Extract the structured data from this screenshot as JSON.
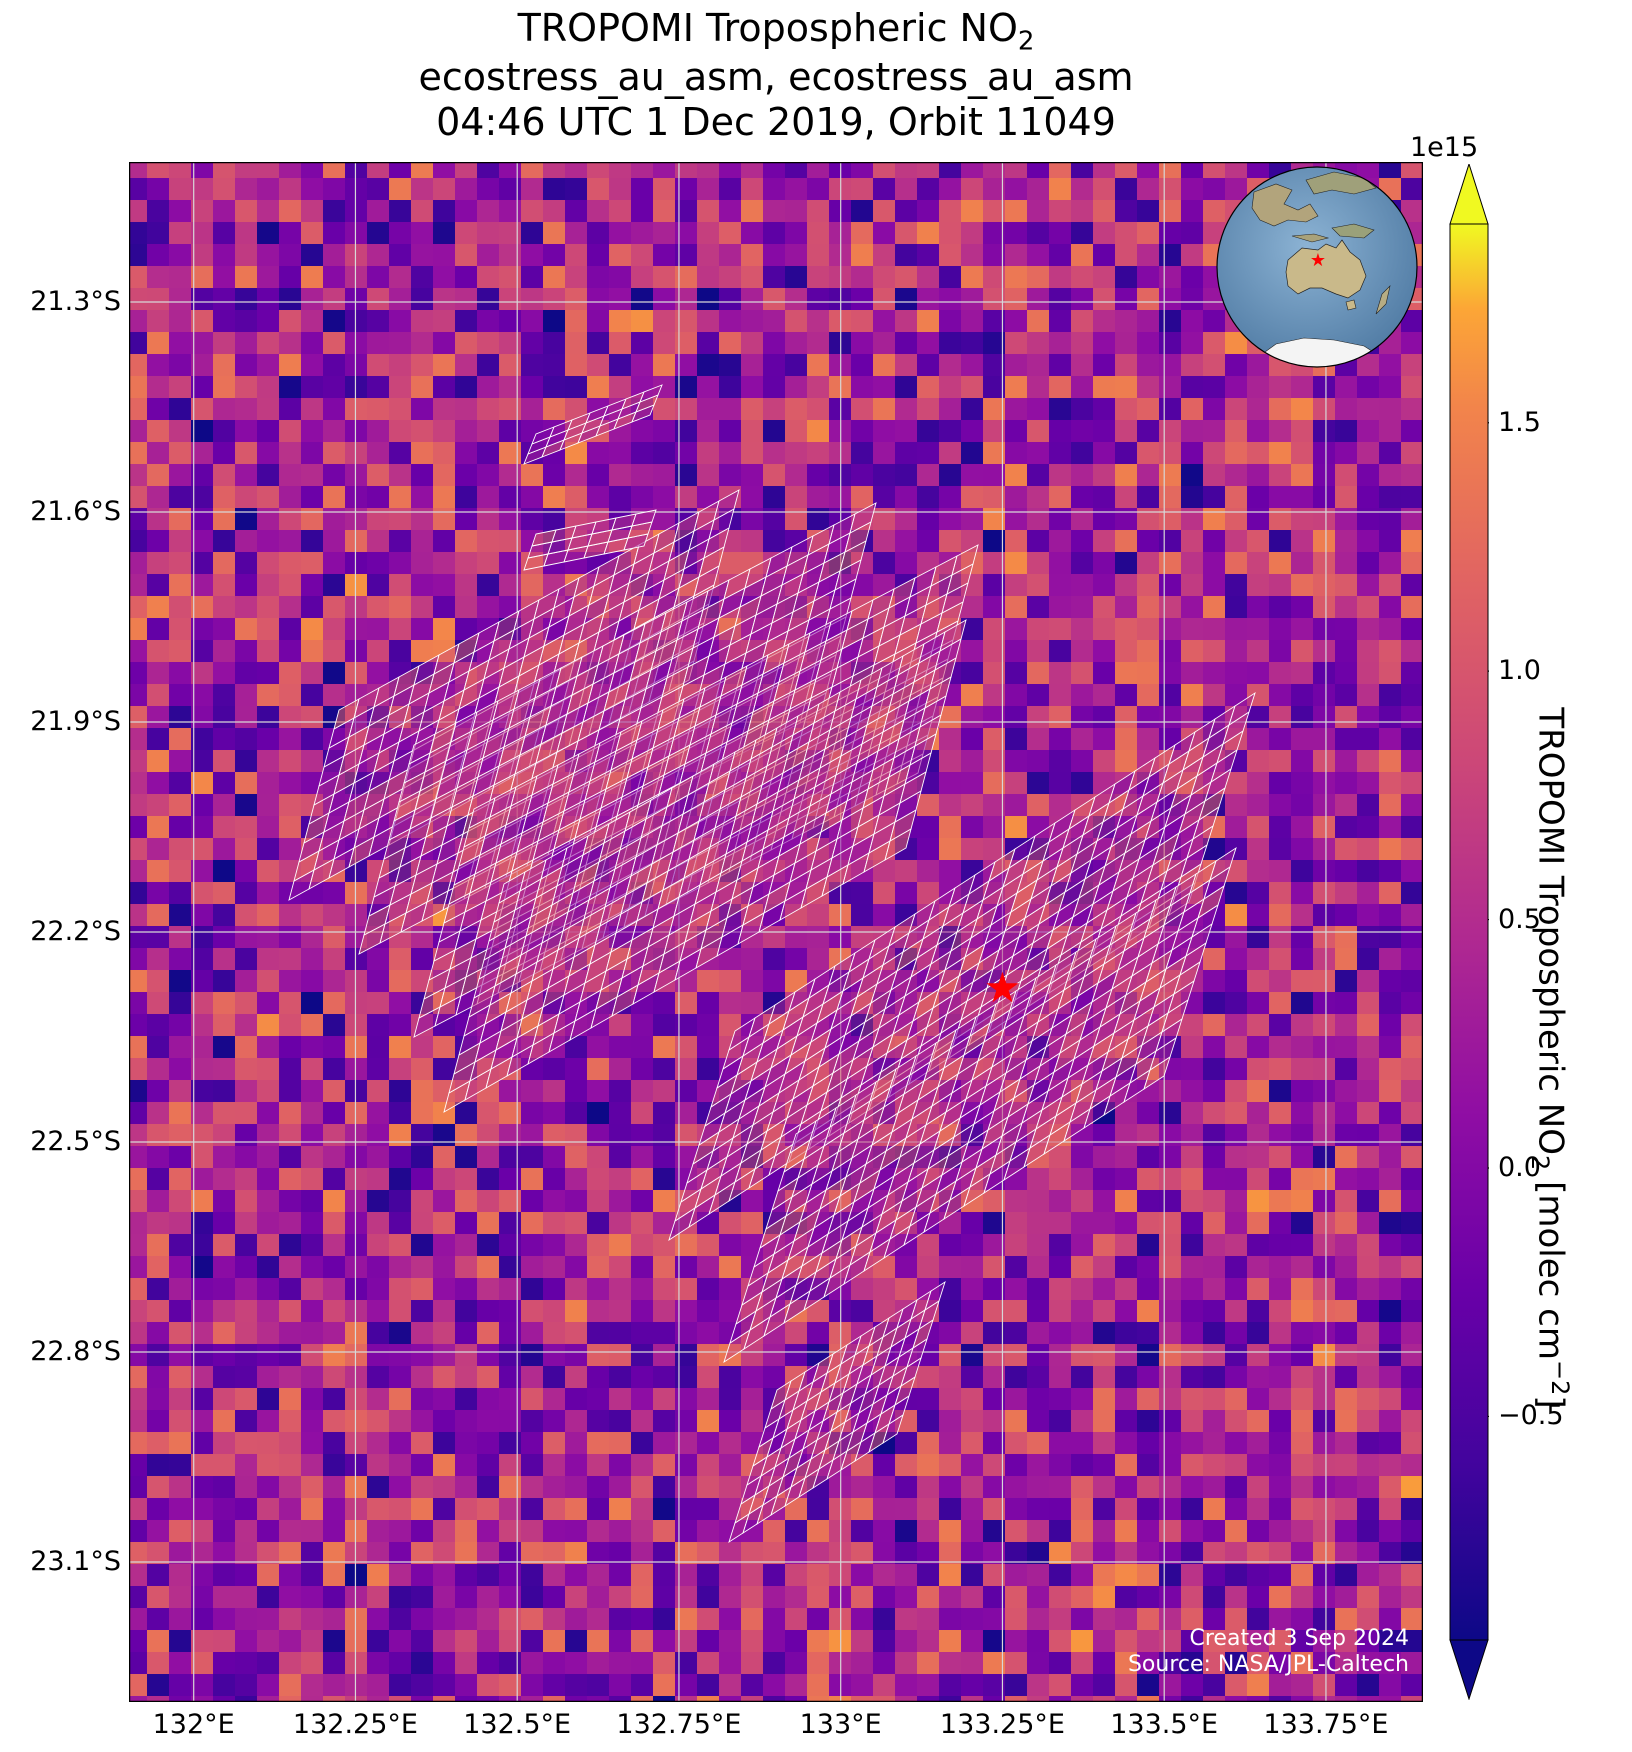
{
  "title": {
    "line1_text": "TROPOMI Tropospheric NO",
    "line1_sub": "2",
    "line2": "ecostress_au_asm, ecostress_au_asm",
    "line3": "04:46 UTC 1 Dec 2019, Orbit 11049"
  },
  "map": {
    "lon_range": [
      131.9,
      133.9
    ],
    "lat_range": [
      -23.3,
      -21.1
    ],
    "lon_ticks": [
      {
        "value": 132.0,
        "label": "132°E"
      },
      {
        "value": 132.25,
        "label": "132.25°E"
      },
      {
        "value": 132.5,
        "label": "132.5°E"
      },
      {
        "value": 132.75,
        "label": "132.75°E"
      },
      {
        "value": 133.0,
        "label": "133°E"
      },
      {
        "value": 133.25,
        "label": "133.25°E"
      },
      {
        "value": 133.5,
        "label": "133.5°E"
      },
      {
        "value": 133.75,
        "label": "133.75°E"
      }
    ],
    "lat_ticks": [
      {
        "value": -21.3,
        "label": "21.3°S"
      },
      {
        "value": -21.6,
        "label": "21.6°S"
      },
      {
        "value": -21.9,
        "label": "21.9°S"
      },
      {
        "value": -22.2,
        "label": "22.2°S"
      },
      {
        "value": -22.5,
        "label": "22.5°S"
      },
      {
        "value": -22.8,
        "label": "22.8°S"
      },
      {
        "value": -23.1,
        "label": "23.1°S"
      }
    ],
    "gridlines": true,
    "target_marker": {
      "lon": 133.25,
      "lat": -22.28,
      "color": "#ff0000",
      "symbol": "star"
    },
    "target_overlay_color": "#ffffff"
  },
  "colorbar": {
    "colormap": "plasma",
    "multiplier": "1e15",
    "range": [
      -0.95,
      1.9
    ],
    "extend": "both",
    "ticks": [
      {
        "value": -0.5,
        "label": "−0.5"
      },
      {
        "value": 0.0,
        "label": "0.0"
      },
      {
        "value": 0.5,
        "label": "0.5"
      },
      {
        "value": 1.0,
        "label": "1.0"
      },
      {
        "value": 1.5,
        "label": "1.5"
      }
    ],
    "label_text": "TROPOMI Tropospheric NO",
    "label_sub": "2",
    "label_units": " [molec cm",
    "label_sup": "−2",
    "label_end": "]"
  },
  "inset_globe": {
    "region": "Australia",
    "ocean_color": "#6a94b8",
    "land_color": "#b9a77a",
    "ice_color": "#f4f4f4",
    "marker_color": "#ff0000"
  },
  "credits": {
    "created": "Created 3 Sep 2024",
    "source": "Source: NASA/JPL-Caltech"
  }
}
